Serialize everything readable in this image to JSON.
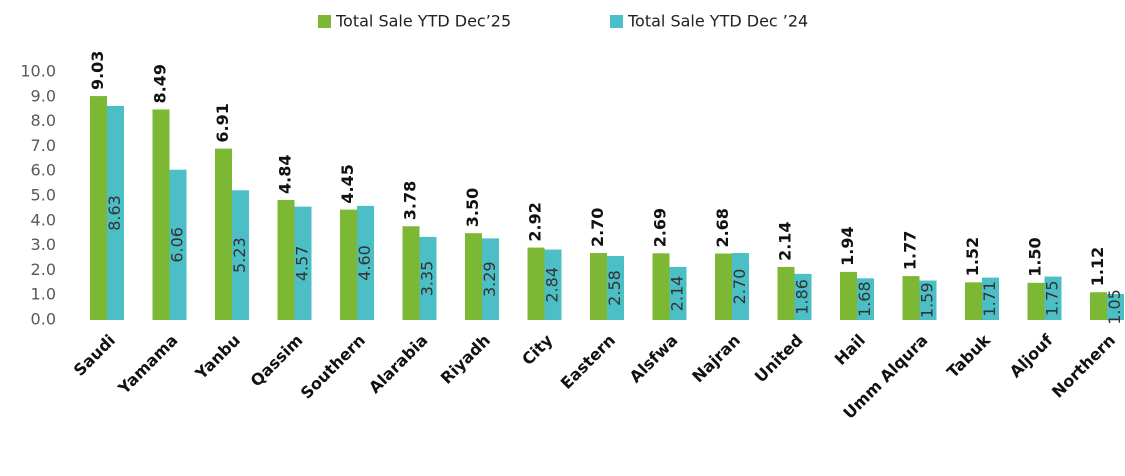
{
  "chart_data": {
    "type": "bar",
    "categories": [
      "Saudi",
      "Yamama",
      "Yanbu",
      "Qassim",
      "Southern",
      "Alarabia",
      "Riyadh",
      "City",
      "Eastern",
      "Alsfwa",
      "Najran",
      "United",
      "Hail",
      "Umm Alqura",
      "Tabuk",
      "Aljouf",
      "Northern"
    ],
    "series": [
      {
        "name": "Total Sale YTD Dec’25",
        "color": "#7cb833",
        "values": [
          9.03,
          8.49,
          6.91,
          4.84,
          4.45,
          3.78,
          3.5,
          2.92,
          2.7,
          2.69,
          2.68,
          2.14,
          1.94,
          1.77,
          1.52,
          1.5,
          1.12
        ],
        "value_labels": [
          "9.03",
          "8.49",
          "6.91",
          "4.84",
          "4.45",
          "3.78",
          "3.50",
          "2.92",
          "2.70",
          "2.69",
          "2.68",
          "2.14",
          "1.94",
          "1.77",
          "1.52",
          "1.50",
          "1.12"
        ]
      },
      {
        "name": "Total Sale YTD Dec ’24",
        "color": "#4cbfc6",
        "values": [
          8.63,
          6.06,
          5.23,
          4.57,
          4.6,
          3.35,
          3.29,
          2.84,
          2.58,
          2.14,
          2.7,
          1.86,
          1.68,
          1.59,
          1.71,
          1.75,
          1.05
        ],
        "value_labels": [
          "8.63",
          "6.06",
          "5.23",
          "4.57",
          "4.60",
          "3.35",
          "3.29",
          "2.84",
          "2.58",
          "2.14",
          "2.70",
          "1.86",
          "1.68",
          "1.59",
          "1.71",
          "1.75",
          "1.05"
        ]
      }
    ],
    "ylim": [
      0,
      10
    ],
    "yticks": [
      {
        "value": 0,
        "label": "0.0"
      },
      {
        "value": 1,
        "label": "1.0"
      },
      {
        "value": 2,
        "label": "2.0"
      },
      {
        "value": 3,
        "label": "3.0"
      },
      {
        "value": 4,
        "label": "4.0"
      },
      {
        "value": 5,
        "label": "5.0"
      },
      {
        "value": 6,
        "label": "6.0"
      },
      {
        "value": 7,
        "label": "7.0"
      },
      {
        "value": 8,
        "label": "8.0"
      },
      {
        "value": 9,
        "label": "9.0"
      },
      {
        "value": 10,
        "label": "10.0"
      }
    ],
    "legend": "top",
    "grid": false
  }
}
